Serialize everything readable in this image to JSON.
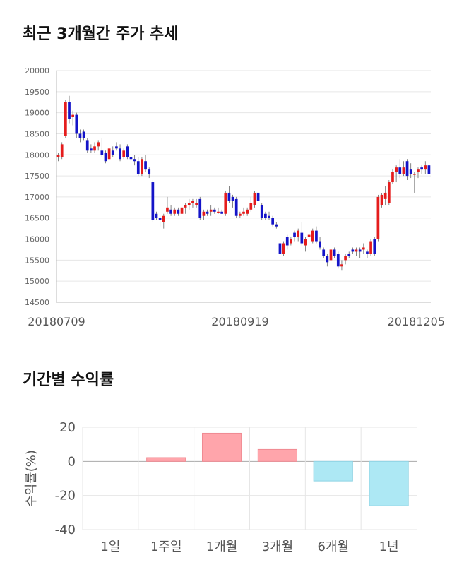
{
  "section1": {
    "title": "최근 3개월간 주가 추세"
  },
  "section2": {
    "title": "기간별 수익률"
  },
  "colors": {
    "up": "#e51c1c",
    "down": "#1414c8",
    "pos": "#ffa5ab",
    "neg": "#ade8f4",
    "grid": "#e6e6e6",
    "axis": "#bbbbbb"
  },
  "chart_data": [
    {
      "type": "candlestick",
      "title": "최근 3개월간 주가 추세",
      "ylim": [
        14500,
        20000
      ],
      "yticks": [
        20000,
        19500,
        19000,
        18500,
        18000,
        17500,
        17000,
        16500,
        16000,
        15500,
        15000,
        14500
      ],
      "xticks": [
        "20180709",
        "20180919",
        "20181205"
      ],
      "grid": true,
      "candles": [
        {
          "o": 17950,
          "h": 18050,
          "l": 17850,
          "c": 18000
        },
        {
          "o": 17950,
          "h": 18300,
          "l": 17900,
          "c": 18250
        },
        {
          "o": 18450,
          "h": 19300,
          "l": 18400,
          "c": 19250
        },
        {
          "o": 19250,
          "h": 19400,
          "l": 18750,
          "c": 18850
        },
        {
          "o": 18900,
          "h": 19050,
          "l": 18700,
          "c": 18950
        },
        {
          "o": 18950,
          "h": 19000,
          "l": 18400,
          "c": 18500
        },
        {
          "o": 18500,
          "h": 18600,
          "l": 18300,
          "c": 18400
        },
        {
          "o": 18550,
          "h": 18600,
          "l": 18350,
          "c": 18400
        },
        {
          "o": 18350,
          "h": 18400,
          "l": 18050,
          "c": 18100
        },
        {
          "o": 18150,
          "h": 18250,
          "l": 18050,
          "c": 18100
        },
        {
          "o": 18100,
          "h": 18300,
          "l": 18050,
          "c": 18200
        },
        {
          "o": 18200,
          "h": 18350,
          "l": 18100,
          "c": 18300
        },
        {
          "o": 18100,
          "h": 18400,
          "l": 17950,
          "c": 18000
        },
        {
          "o": 18050,
          "h": 18100,
          "l": 17800,
          "c": 17850
        },
        {
          "o": 17900,
          "h": 18200,
          "l": 17850,
          "c": 18150
        },
        {
          "o": 18100,
          "h": 18200,
          "l": 17950,
          "c": 18000
        },
        {
          "o": 18200,
          "h": 18300,
          "l": 18100,
          "c": 18150
        },
        {
          "o": 18150,
          "h": 18250,
          "l": 17850,
          "c": 17900
        },
        {
          "o": 17950,
          "h": 18150,
          "l": 17900,
          "c": 18100
        },
        {
          "o": 18200,
          "h": 18250,
          "l": 17900,
          "c": 17950
        },
        {
          "o": 17950,
          "h": 18050,
          "l": 17850,
          "c": 17900
        },
        {
          "o": 17900,
          "h": 18000,
          "l": 17750,
          "c": 17850
        },
        {
          "o": 17850,
          "h": 17950,
          "l": 17500,
          "c": 17550
        },
        {
          "o": 17550,
          "h": 17950,
          "l": 17500,
          "c": 17900
        },
        {
          "o": 17850,
          "h": 18000,
          "l": 17600,
          "c": 17650
        },
        {
          "o": 17650,
          "h": 17700,
          "l": 17450,
          "c": 17550
        },
        {
          "o": 17350,
          "h": 17400,
          "l": 16400,
          "c": 16450
        },
        {
          "o": 16600,
          "h": 16650,
          "l": 16450,
          "c": 16500
        },
        {
          "o": 16500,
          "h": 16550,
          "l": 16300,
          "c": 16450
        },
        {
          "o": 16400,
          "h": 16600,
          "l": 16250,
          "c": 16550
        },
        {
          "o": 16650,
          "h": 17000,
          "l": 16600,
          "c": 16750
        },
        {
          "o": 16700,
          "h": 16800,
          "l": 16550,
          "c": 16600
        },
        {
          "o": 16600,
          "h": 16750,
          "l": 16550,
          "c": 16700
        },
        {
          "o": 16700,
          "h": 16750,
          "l": 16550,
          "c": 16600
        },
        {
          "o": 16600,
          "h": 16800,
          "l": 16450,
          "c": 16750
        },
        {
          "o": 16750,
          "h": 16850,
          "l": 16600,
          "c": 16800
        },
        {
          "o": 16800,
          "h": 16950,
          "l": 16700,
          "c": 16850
        },
        {
          "o": 16850,
          "h": 16950,
          "l": 16750,
          "c": 16900
        },
        {
          "o": 16800,
          "h": 16950,
          "l": 16750,
          "c": 16850
        },
        {
          "o": 16950,
          "h": 17000,
          "l": 16450,
          "c": 16500
        },
        {
          "o": 16550,
          "h": 16700,
          "l": 16450,
          "c": 16650
        },
        {
          "o": 16650,
          "h": 16700,
          "l": 16550,
          "c": 16600
        },
        {
          "o": 16650,
          "h": 16800,
          "l": 16550,
          "c": 16700
        },
        {
          "o": 16700,
          "h": 16750,
          "l": 16600,
          "c": 16650
        },
        {
          "o": 16650,
          "h": 16750,
          "l": 16600,
          "c": 16650
        },
        {
          "o": 16650,
          "h": 16700,
          "l": 16600,
          "c": 16600
        },
        {
          "o": 16600,
          "h": 17150,
          "l": 16550,
          "c": 17100
        },
        {
          "o": 17100,
          "h": 17250,
          "l": 16850,
          "c": 16900
        },
        {
          "o": 17000,
          "h": 17050,
          "l": 16750,
          "c": 16900
        },
        {
          "o": 16950,
          "h": 17000,
          "l": 16500,
          "c": 16550
        },
        {
          "o": 16550,
          "h": 16650,
          "l": 16500,
          "c": 16600
        },
        {
          "o": 16600,
          "h": 16750,
          "l": 16550,
          "c": 16650
        },
        {
          "o": 16600,
          "h": 16750,
          "l": 16550,
          "c": 16700
        },
        {
          "o": 16700,
          "h": 17000,
          "l": 16650,
          "c": 16850
        },
        {
          "o": 16800,
          "h": 17150,
          "l": 16750,
          "c": 17100
        },
        {
          "o": 17100,
          "h": 17150,
          "l": 16850,
          "c": 16900
        },
        {
          "o": 16800,
          "h": 16850,
          "l": 16450,
          "c": 16500
        },
        {
          "o": 16600,
          "h": 16650,
          "l": 16450,
          "c": 16500
        },
        {
          "o": 16550,
          "h": 16650,
          "l": 16450,
          "c": 16500
        },
        {
          "o": 16500,
          "h": 16550,
          "l": 16300,
          "c": 16350
        },
        {
          "o": 16350,
          "h": 16400,
          "l": 16250,
          "c": 16300
        },
        {
          "o": 15900,
          "h": 16000,
          "l": 15600,
          "c": 15650
        },
        {
          "o": 15650,
          "h": 15950,
          "l": 15600,
          "c": 15900
        },
        {
          "o": 16050,
          "h": 16100,
          "l": 15750,
          "c": 15850
        },
        {
          "o": 15900,
          "h": 16050,
          "l": 15850,
          "c": 16000
        },
        {
          "o": 16150,
          "h": 16200,
          "l": 15950,
          "c": 16050
        },
        {
          "o": 16050,
          "h": 16250,
          "l": 15950,
          "c": 16200
        },
        {
          "o": 16150,
          "h": 16400,
          "l": 15850,
          "c": 15900
        },
        {
          "o": 15850,
          "h": 16050,
          "l": 15700,
          "c": 16000
        },
        {
          "o": 16050,
          "h": 16200,
          "l": 16000,
          "c": 16100
        },
        {
          "o": 15950,
          "h": 16250,
          "l": 15900,
          "c": 16200
        },
        {
          "o": 16200,
          "h": 16300,
          "l": 15900,
          "c": 15950
        },
        {
          "o": 15950,
          "h": 16050,
          "l": 15750,
          "c": 15800
        },
        {
          "o": 15750,
          "h": 15800,
          "l": 15550,
          "c": 15600
        },
        {
          "o": 15600,
          "h": 15650,
          "l": 15350,
          "c": 15450
        },
        {
          "o": 15500,
          "h": 15850,
          "l": 15450,
          "c": 15750
        },
        {
          "o": 15750,
          "h": 15800,
          "l": 15550,
          "c": 15600
        },
        {
          "o": 15650,
          "h": 15700,
          "l": 15300,
          "c": 15350
        },
        {
          "o": 15350,
          "h": 15500,
          "l": 15250,
          "c": 15400
        },
        {
          "o": 15500,
          "h": 15650,
          "l": 15400,
          "c": 15600
        },
        {
          "o": 15650,
          "h": 15700,
          "l": 15550,
          "c": 15600
        },
        {
          "o": 15750,
          "h": 15800,
          "l": 15650,
          "c": 15700
        },
        {
          "o": 15700,
          "h": 15800,
          "l": 15600,
          "c": 15750
        },
        {
          "o": 15750,
          "h": 15800,
          "l": 15550,
          "c": 15700
        },
        {
          "o": 15750,
          "h": 15900,
          "l": 15650,
          "c": 15800
        },
        {
          "o": 15700,
          "h": 15750,
          "l": 15550,
          "c": 15650
        },
        {
          "o": 15650,
          "h": 16000,
          "l": 15600,
          "c": 15950
        },
        {
          "o": 16000,
          "h": 16050,
          "l": 15600,
          "c": 15650
        },
        {
          "o": 16000,
          "h": 17050,
          "l": 15950,
          "c": 17000
        },
        {
          "o": 16800,
          "h": 17100,
          "l": 16750,
          "c": 17050
        },
        {
          "o": 16950,
          "h": 17250,
          "l": 16800,
          "c": 17100
        },
        {
          "o": 16850,
          "h": 17400,
          "l": 16800,
          "c": 17350
        },
        {
          "o": 17350,
          "h": 17650,
          "l": 17300,
          "c": 17600
        },
        {
          "o": 17600,
          "h": 17750,
          "l": 17350,
          "c": 17700
        },
        {
          "o": 17700,
          "h": 17900,
          "l": 17450,
          "c": 17550
        },
        {
          "o": 17550,
          "h": 17850,
          "l": 17500,
          "c": 17700
        },
        {
          "o": 17850,
          "h": 17900,
          "l": 17400,
          "c": 17500
        },
        {
          "o": 17650,
          "h": 17800,
          "l": 17450,
          "c": 17550
        },
        {
          "o": 17550,
          "h": 17600,
          "l": 17100,
          "c": 17550
        },
        {
          "o": 17600,
          "h": 17700,
          "l": 17450,
          "c": 17650
        },
        {
          "o": 17700,
          "h": 17750,
          "l": 17550,
          "c": 17650
        },
        {
          "o": 17650,
          "h": 17850,
          "l": 17550,
          "c": 17750
        },
        {
          "o": 17750,
          "h": 17850,
          "l": 17500,
          "c": 17550
        }
      ]
    },
    {
      "type": "bar",
      "title": "기간별 수익률",
      "categories": [
        "1일",
        "1주일",
        "1개월",
        "3개월",
        "6개월",
        "1년"
      ],
      "values": [
        0,
        2.2,
        16.5,
        7.0,
        -11.5,
        -26.0
      ],
      "ylabel": "수익률(%)",
      "ylim": [
        -40,
        20
      ],
      "yticks": [
        20,
        0,
        -20,
        -40
      ],
      "grid": true
    }
  ]
}
